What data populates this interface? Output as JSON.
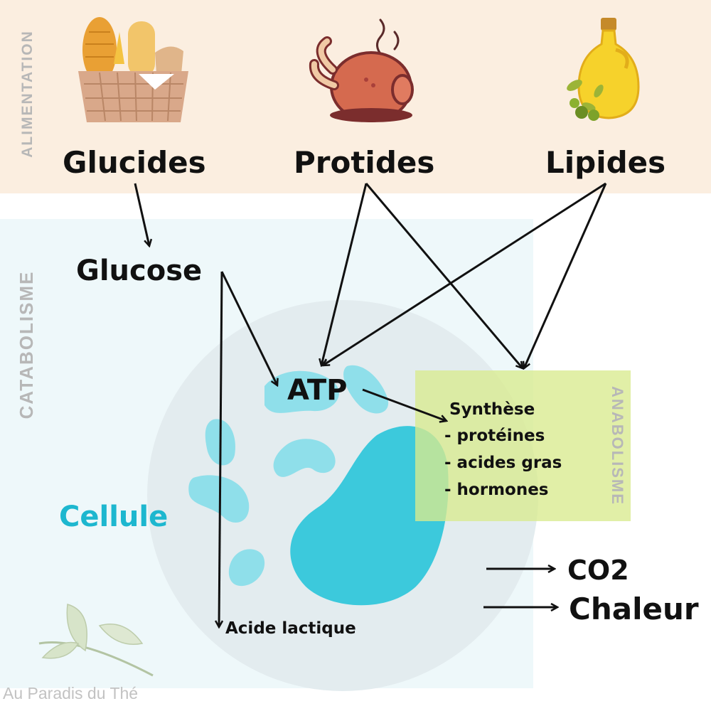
{
  "sections": {
    "alimentation": "ALIMENTATION",
    "catabolisme": "CATABOLISME",
    "anabolisme": "ANABOLISME"
  },
  "foods": {
    "glucides": "Glucides",
    "protides": "Protides",
    "lipides": "Lipides"
  },
  "nodes": {
    "glucose": "Glucose",
    "atp": "ATP",
    "cellule": "Cellule",
    "acide_lactique": "Acide lactique",
    "co2": "CO2",
    "chaleur": "Chaleur"
  },
  "synthese": {
    "title": "Synthèse",
    "items": [
      "- protéines",
      "- acides gras",
      "- hormones"
    ]
  },
  "watermark": "Au Paradis du Thé",
  "icons": [
    "bread-basket-icon",
    "roast-chicken-icon",
    "olive-oil-icon",
    "tea-leaf-icon"
  ],
  "colors": {
    "alimentation_band": "#fbeee0",
    "catabolisme_band": "#eef8fa",
    "cell": "#e3ecef",
    "organelle": "#8fdfea",
    "nucleus": "#3cc9dc",
    "anabolisme_box": "#dcec9c",
    "cellule_text": "#1db7cf"
  }
}
